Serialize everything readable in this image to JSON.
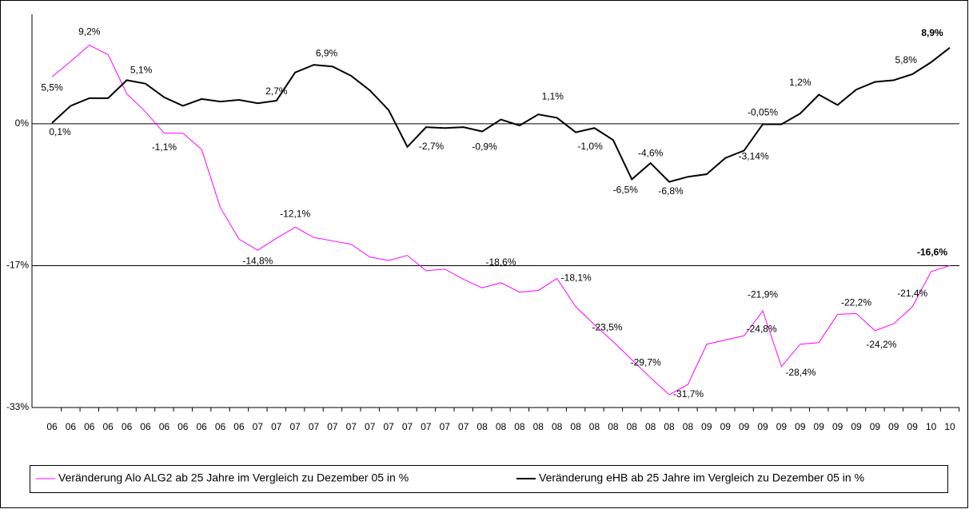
{
  "chart_data": {
    "type": "line",
    "categories": [
      "06",
      "06",
      "06",
      "06",
      "06",
      "06",
      "06",
      "06",
      "06",
      "06",
      "06",
      "07",
      "07",
      "07",
      "07",
      "07",
      "07",
      "07",
      "07",
      "07",
      "07",
      "07",
      "07",
      "08",
      "08",
      "08",
      "08",
      "08",
      "08",
      "08",
      "08",
      "08",
      "08",
      "08",
      "08",
      "09",
      "09",
      "09",
      "09",
      "09",
      "09",
      "09",
      "09",
      "09",
      "09",
      "09",
      "09",
      "10",
      "10"
    ],
    "series": [
      {
        "name": "Veränderung Alo ALG2 ab 25 Jahre im Vergleich zu Dezember 05 in %",
        "color": "#ff00ff",
        "values": [
          5.5,
          7.3,
          9.2,
          8.1,
          3.5,
          1.4,
          -1.1,
          -1.1,
          -3.0,
          -9.8,
          -13.5,
          -14.8,
          -13.4,
          -12.1,
          -13.3,
          -13.7,
          -14.1,
          -15.6,
          -16.0,
          -15.4,
          -17.2,
          -17.0,
          -18.2,
          -19.2,
          -18.6,
          -19.7,
          -19.5,
          -18.1,
          -21.4,
          -23.5,
          -25.5,
          -27.6,
          -29.7,
          -31.7,
          -30.5,
          -25.8,
          -25.3,
          -24.8,
          -21.9,
          -28.4,
          -25.8,
          -25.6,
          -22.3,
          -22.2,
          -24.2,
          -23.4,
          -21.4,
          -17.3,
          -16.6
        ],
        "value_labels": [
          "5,5%",
          null,
          "9,2%",
          null,
          null,
          null,
          "-1,1%",
          null,
          null,
          null,
          null,
          "-14,8%",
          null,
          "-12,1%",
          null,
          null,
          null,
          null,
          null,
          null,
          null,
          null,
          null,
          null,
          "-18,6%",
          null,
          null,
          "-18,1%",
          null,
          "-23,5%",
          null,
          null,
          "-29,7%",
          "-31,7%",
          null,
          null,
          null,
          "-24,8%",
          "-21,9%",
          "-28,4%",
          null,
          null,
          null,
          "-22,2%",
          "-24,2%",
          null,
          "-21,4%",
          null,
          "-16,6%"
        ]
      },
      {
        "name": "Veränderung eHB ab 25 Jahre im Vergleich zu Dezember 05 in %",
        "color": "#000000",
        "values": [
          0.1,
          2.1,
          3.0,
          3.0,
          5.1,
          4.7,
          3.1,
          2.1,
          2.9,
          2.6,
          2.8,
          2.4,
          2.7,
          6.0,
          6.9,
          6.7,
          5.6,
          3.9,
          1.6,
          -2.7,
          -0.4,
          -0.5,
          -0.4,
          -0.9,
          0.5,
          -0.2,
          1.1,
          0.7,
          -1.0,
          -0.5,
          -1.9,
          -6.5,
          -4.6,
          -6.8,
          -6.2,
          -5.9,
          -4.0,
          -3.14,
          -0.05,
          -0.05,
          1.2,
          3.4,
          2.2,
          4.0,
          4.9,
          5.1,
          5.8,
          7.2,
          8.9
        ],
        "value_labels": [
          "0,1%",
          null,
          null,
          null,
          "5,1%",
          null,
          null,
          null,
          null,
          null,
          null,
          null,
          "2,7%",
          null,
          "6,9%",
          null,
          null,
          null,
          null,
          "-2,7%",
          null,
          null,
          null,
          "-0,9%",
          null,
          null,
          "1,1%",
          null,
          "-1,0%",
          null,
          null,
          "-6,5%",
          "-4,6%",
          "-6,8%",
          null,
          null,
          null,
          "-3,14%",
          "-0,05%",
          null,
          "1,2%",
          null,
          null,
          null,
          null,
          null,
          "5,8%",
          null,
          "8,9%"
        ]
      }
    ],
    "ylim": [
      -33.2,
      12.8
    ],
    "yticks": [
      {
        "value": 0,
        "label": "0%"
      },
      {
        "value": -16.6,
        "label": "-17%"
      },
      {
        "value": -33.2,
        "label": "-33%"
      }
    ],
    "grid": true
  }
}
